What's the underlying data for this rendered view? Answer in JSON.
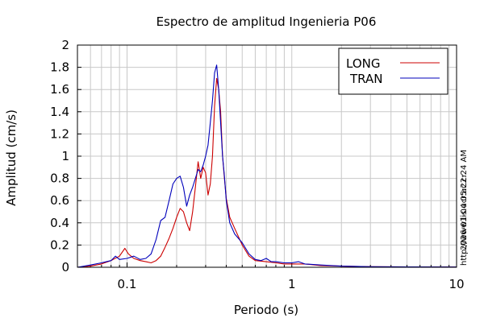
{
  "chart_data": {
    "type": "line",
    "title": "Espectro de amplitud Ingenieria P06",
    "xlabel": "Periodo (s)",
    "ylabel": "Amplitud (cm/s)",
    "xscale": "log",
    "xlim": [
      0.05,
      10
    ],
    "ylim": [
      0,
      2
    ],
    "xticks": [
      {
        "value": 0.1,
        "label": "0.1"
      },
      {
        "value": 1,
        "label": "1"
      },
      {
        "value": 10,
        "label": "10"
      }
    ],
    "yticks": [
      {
        "value": 0,
        "label": "0"
      },
      {
        "value": 0.2,
        "label": "0.2"
      },
      {
        "value": 0.4,
        "label": "0.4"
      },
      {
        "value": 0.6,
        "label": "0.6"
      },
      {
        "value": 0.8,
        "label": "0.8"
      },
      {
        "value": 1,
        "label": "1"
      },
      {
        "value": 1.2,
        "label": "1.2"
      },
      {
        "value": 1.4,
        "label": "1.4"
      },
      {
        "value": 1.6,
        "label": "1.6"
      },
      {
        "value": 1.8,
        "label": "1.8"
      },
      {
        "value": 2,
        "label": "2"
      }
    ],
    "grid": true,
    "legend_position": "top-right",
    "side_texts": [
      "2026-01-04 05:22:24 AM",
      "http://www.lis.ucr.ac.cr"
    ],
    "series": [
      {
        "name": "LONG",
        "color": "#cc0000",
        "points": [
          [
            0.05,
            0.0
          ],
          [
            0.06,
            0.01
          ],
          [
            0.07,
            0.03
          ],
          [
            0.08,
            0.06
          ],
          [
            0.09,
            0.1
          ],
          [
            0.097,
            0.17
          ],
          [
            0.102,
            0.12
          ],
          [
            0.11,
            0.08
          ],
          [
            0.12,
            0.06
          ],
          [
            0.13,
            0.05
          ],
          [
            0.14,
            0.04
          ],
          [
            0.15,
            0.06
          ],
          [
            0.16,
            0.1
          ],
          [
            0.17,
            0.18
          ],
          [
            0.18,
            0.26
          ],
          [
            0.19,
            0.35
          ],
          [
            0.2,
            0.45
          ],
          [
            0.21,
            0.53
          ],
          [
            0.22,
            0.5
          ],
          [
            0.23,
            0.4
          ],
          [
            0.24,
            0.33
          ],
          [
            0.25,
            0.5
          ],
          [
            0.26,
            0.72
          ],
          [
            0.27,
            0.95
          ],
          [
            0.28,
            0.8
          ],
          [
            0.29,
            0.9
          ],
          [
            0.3,
            0.85
          ],
          [
            0.31,
            0.65
          ],
          [
            0.32,
            0.75
          ],
          [
            0.33,
            1.0
          ],
          [
            0.34,
            1.45
          ],
          [
            0.35,
            1.7
          ],
          [
            0.36,
            1.6
          ],
          [
            0.37,
            1.4
          ],
          [
            0.38,
            1.0
          ],
          [
            0.39,
            0.8
          ],
          [
            0.4,
            0.62
          ],
          [
            0.42,
            0.45
          ],
          [
            0.45,
            0.35
          ],
          [
            0.5,
            0.2
          ],
          [
            0.55,
            0.1
          ],
          [
            0.6,
            0.06
          ],
          [
            0.7,
            0.05
          ],
          [
            0.8,
            0.04
          ],
          [
            0.9,
            0.03
          ],
          [
            1.0,
            0.03
          ],
          [
            1.2,
            0.03
          ],
          [
            1.5,
            0.015
          ],
          [
            2.0,
            0.01
          ],
          [
            3.0,
            0.005
          ],
          [
            5.0,
            0.003
          ],
          [
            10.0,
            0.002
          ]
        ]
      },
      {
        "name": "TRAN",
        "color": "#0000bb",
        "points": [
          [
            0.05,
            0.0
          ],
          [
            0.06,
            0.02
          ],
          [
            0.07,
            0.04
          ],
          [
            0.08,
            0.06
          ],
          [
            0.085,
            0.1
          ],
          [
            0.09,
            0.07
          ],
          [
            0.1,
            0.08
          ],
          [
            0.11,
            0.1
          ],
          [
            0.12,
            0.07
          ],
          [
            0.13,
            0.08
          ],
          [
            0.14,
            0.12
          ],
          [
            0.15,
            0.25
          ],
          [
            0.16,
            0.42
          ],
          [
            0.17,
            0.45
          ],
          [
            0.18,
            0.6
          ],
          [
            0.19,
            0.75
          ],
          [
            0.2,
            0.8
          ],
          [
            0.21,
            0.82
          ],
          [
            0.22,
            0.72
          ],
          [
            0.23,
            0.55
          ],
          [
            0.24,
            0.65
          ],
          [
            0.25,
            0.72
          ],
          [
            0.26,
            0.8
          ],
          [
            0.27,
            0.88
          ],
          [
            0.28,
            0.86
          ],
          [
            0.29,
            0.92
          ],
          [
            0.3,
            1.0
          ],
          [
            0.31,
            1.1
          ],
          [
            0.32,
            1.3
          ],
          [
            0.33,
            1.5
          ],
          [
            0.34,
            1.75
          ],
          [
            0.35,
            1.82
          ],
          [
            0.36,
            1.6
          ],
          [
            0.37,
            1.3
          ],
          [
            0.38,
            1.0
          ],
          [
            0.39,
            0.82
          ],
          [
            0.4,
            0.6
          ],
          [
            0.42,
            0.4
          ],
          [
            0.45,
            0.3
          ],
          [
            0.5,
            0.22
          ],
          [
            0.55,
            0.12
          ],
          [
            0.6,
            0.07
          ],
          [
            0.65,
            0.06
          ],
          [
            0.7,
            0.08
          ],
          [
            0.75,
            0.05
          ],
          [
            0.8,
            0.05
          ],
          [
            0.9,
            0.04
          ],
          [
            1.0,
            0.04
          ],
          [
            1.1,
            0.05
          ],
          [
            1.2,
            0.03
          ],
          [
            1.5,
            0.02
          ],
          [
            2.0,
            0.01
          ],
          [
            3.0,
            0.005
          ],
          [
            5.0,
            0.003
          ],
          [
            10.0,
            0.002
          ]
        ]
      }
    ]
  }
}
